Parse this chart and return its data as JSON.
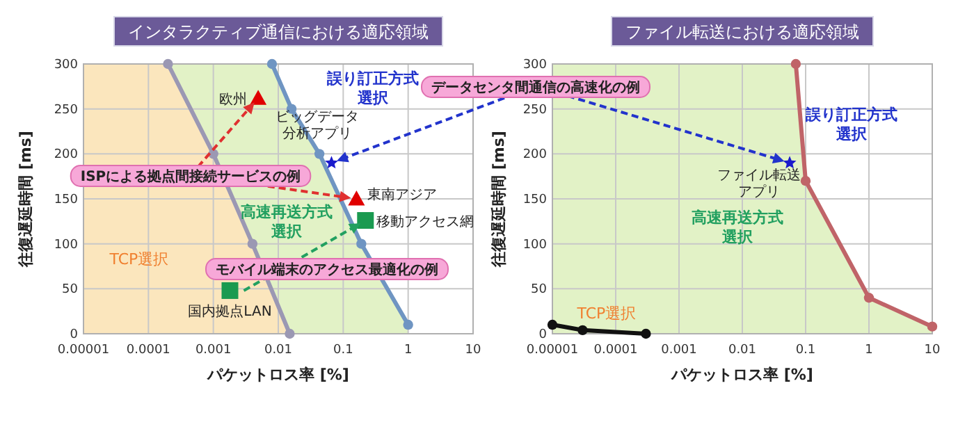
{
  "chart_data": [
    {
      "type": "line",
      "title": "インタラクティブ通信における適応領域",
      "xlabel": "パケットロス率 [%]",
      "ylabel": "往復遅延時間 [ms]",
      "log": "x",
      "grid": true,
      "xlim": [
        1e-05,
        10
      ],
      "ylim": [
        0,
        300
      ],
      "xticks": [
        {
          "value": 1e-05,
          "label": "0.00001"
        },
        0.0001,
        0.001,
        0.01,
        0.1,
        1,
        10
      ],
      "yticks": [
        0,
        50,
        100,
        150,
        200,
        250,
        300
      ],
      "series": [
        {
          "type": "line",
          "color": "#9b98b3",
          "marker": "circle",
          "line_style": "solid",
          "x": [
            0.0002,
            0.001,
            0.004,
            0.015
          ],
          "values": [
            300,
            200,
            100,
            0
          ]
        },
        {
          "type": "line",
          "color": "#6f95c2",
          "marker": "circle",
          "line_style": "solid",
          "x": [
            0.008,
            0.016,
            0.043,
            0.19,
            1
          ],
          "values": [
            300,
            250,
            200,
            100,
            10
          ]
        },
        {
          "type": "scatter",
          "color": "#e00000",
          "marker": "triangle",
          "x": [
            0.0049,
            0.16
          ],
          "values": [
            262,
            150
          ]
        },
        {
          "type": "scatter",
          "color": "#1a9a50",
          "marker": "square",
          "x": [
            0.0018,
            0.22
          ],
          "values": [
            48,
            126
          ]
        },
        {
          "type": "scatter",
          "color": "#1a1acc",
          "marker": "star",
          "x": [
            0.066
          ],
          "values": [
            190
          ]
        }
      ],
      "annotations": [
        {
          "text": "欧州",
          "x": 0.0049,
          "y": 262
        },
        {
          "text": "東南アジア",
          "x": 0.16,
          "y": 150
        },
        {
          "text": "移動アクセス網",
          "x": 0.22,
          "y": 126
        },
        {
          "text": "国内拠点LAN",
          "x": 0.0018,
          "y": 48
        },
        {
          "text": "ビッグデータ分析アプリ",
          "x": 0.066,
          "y": 190
        },
        "誤り訂正方式選択",
        "高速再送方式選択",
        "TCP選択",
        {
          "text": "ISPによる拠点間接続サービスの例",
          "x": 0.16,
          "y": 150
        },
        {
          "text": "モバイル端末のアクセス最適化の例",
          "x": 0.22,
          "y": 126
        }
      ]
    },
    {
      "type": "line",
      "title": "ファイル転送における適応領域",
      "xlabel": "パケットロス率 [%]",
      "ylabel": "往復遅延時間 [ms]",
      "log": "x",
      "grid": true,
      "xlim": [
        1e-05,
        10
      ],
      "ylim": [
        0,
        300
      ],
      "xticks": [
        {
          "value": 1e-05,
          "label": "0.00001"
        },
        0.0001,
        0.001,
        0.01,
        0.1,
        1,
        10
      ],
      "yticks": [
        0,
        50,
        100,
        150,
        200,
        250,
        300
      ],
      "series": [
        {
          "type": "line",
          "color": "#c06468",
          "marker": "circle",
          "line_style": "solid",
          "x": [
            0.07,
            0.1,
            1,
            10
          ],
          "values": [
            300,
            170,
            40,
            8
          ]
        },
        {
          "type": "line",
          "color": "#111111",
          "marker": "circle",
          "line_style": "solid",
          "x": [
            1e-05,
            3e-05,
            0.0003
          ],
          "values": [
            10,
            4,
            0
          ]
        },
        {
          "type": "scatter",
          "color": "#1a1acc",
          "marker": "star",
          "x": [
            0.056
          ],
          "values": [
            190
          ]
        }
      ],
      "annotations": [
        {
          "text": "ファイル転送アプリ",
          "x": 0.056,
          "y": 190
        },
        "誤り訂正方式選択",
        "高速再送方式選択",
        "TCP選択",
        {
          "text": "データセンタ間通信の高速化の例",
          "x": 0.056,
          "y": 190
        }
      ]
    }
  ]
}
